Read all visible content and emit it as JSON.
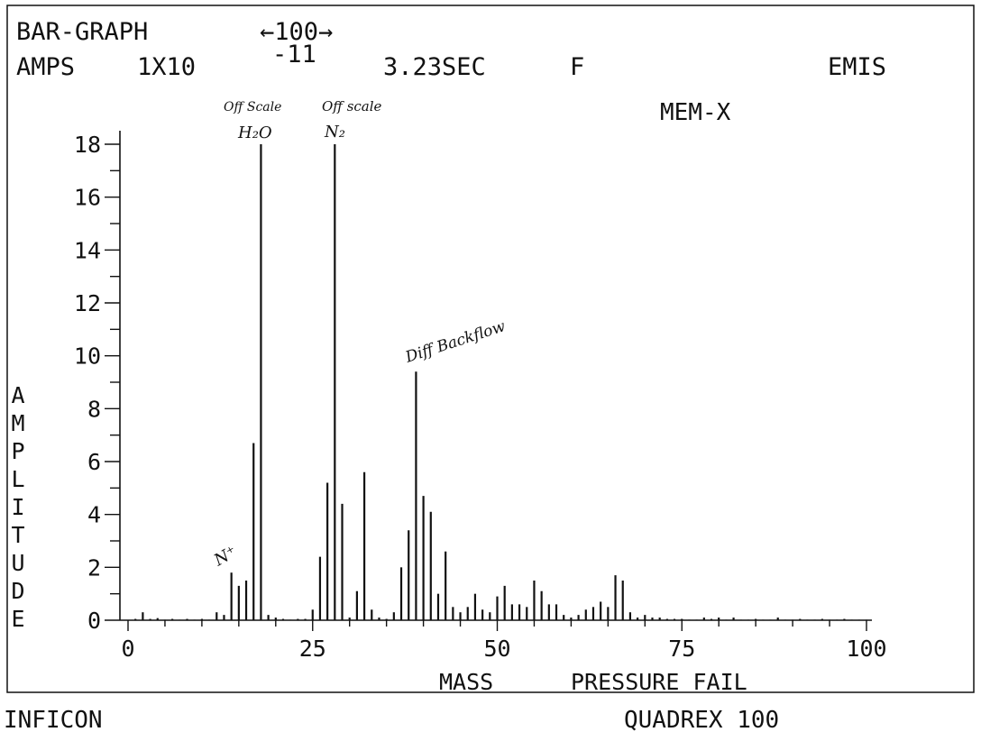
{
  "header": {
    "line1_left": "BAR-GRAPH",
    "line1_right": "←100→",
    "line2_amps": "AMPS",
    "line2_scale": "1X10",
    "line2_exp": "-11",
    "line2_time": "3.23SEC",
    "line2_flag": "F",
    "line2_mode": "EMIS",
    "line3": "MEM-X"
  },
  "footer": {
    "left": "INFICON",
    "right": "QUADREX 100"
  },
  "chart_data": {
    "type": "bar",
    "xlabel": "MASS",
    "status": "PRESSURE FAIL",
    "ylabel": "AMPLITUDE",
    "xlim": [
      0,
      100
    ],
    "ylim": [
      0,
      18
    ],
    "x_ticks": [
      "0",
      "25",
      "50",
      "75",
      "100"
    ],
    "y_ticks": [
      "0",
      "2",
      "4",
      "6",
      "8",
      "10",
      "12",
      "14",
      "16",
      "18"
    ],
    "x": [
      1,
      2,
      3,
      4,
      5,
      6,
      7,
      8,
      9,
      10,
      11,
      12,
      13,
      14,
      15,
      16,
      17,
      18,
      19,
      20,
      21,
      22,
      23,
      24,
      25,
      26,
      27,
      28,
      29,
      30,
      31,
      32,
      33,
      34,
      35,
      36,
      37,
      38,
      39,
      40,
      41,
      42,
      43,
      44,
      45,
      46,
      47,
      48,
      49,
      50,
      51,
      52,
      53,
      54,
      55,
      56,
      57,
      58,
      59,
      60,
      61,
      62,
      63,
      64,
      65,
      66,
      67,
      68,
      69,
      70,
      71,
      72,
      73,
      74,
      75,
      76,
      77,
      78,
      79,
      80,
      81,
      82,
      83,
      84,
      85,
      86,
      87,
      88,
      89,
      90,
      91,
      92,
      93,
      94,
      95,
      96,
      97,
      98,
      99,
      100
    ],
    "values": [
      0.05,
      0.3,
      0.05,
      0.08,
      0.02,
      0.05,
      0.02,
      0.05,
      0.02,
      0.05,
      0.02,
      0.3,
      0.2,
      1.8,
      1.3,
      1.5,
      6.7,
      18,
      0.2,
      0.1,
      0.05,
      0.02,
      0.05,
      0.05,
      0.4,
      2.4,
      5.2,
      18,
      4.4,
      0.1,
      1.1,
      5.6,
      0.4,
      0.1,
      0.05,
      0.3,
      2.0,
      3.4,
      9.4,
      4.7,
      4.1,
      1.0,
      2.6,
      0.5,
      0.3,
      0.5,
      1.0,
      0.4,
      0.3,
      0.9,
      1.3,
      0.6,
      0.6,
      0.5,
      1.5,
      1.1,
      0.6,
      0.6,
      0.2,
      0.1,
      0.2,
      0.4,
      0.5,
      0.7,
      0.5,
      1.7,
      1.5,
      0.3,
      0.1,
      0.2,
      0.1,
      0.1,
      0.05,
      0.05,
      0.05,
      0.02,
      0.02,
      0.1,
      0.05,
      0.1,
      0.02,
      0.1,
      0.02,
      0.02,
      0.05,
      0.02,
      0.02,
      0.1,
      0.02,
      0.02,
      0.05,
      0.02,
      0.02,
      0.05,
      0.02,
      0.02,
      0.05,
      0.02,
      0.02,
      0.02
    ],
    "annotations": [
      {
        "label": "N⁺",
        "x": 14
      },
      {
        "label": "Off Scale",
        "sub": "H₂O",
        "x": 18
      },
      {
        "label": "Off scale",
        "sub": "N₂",
        "x": 28
      },
      {
        "label": "Diff Backflow",
        "x": 39
      }
    ]
  }
}
